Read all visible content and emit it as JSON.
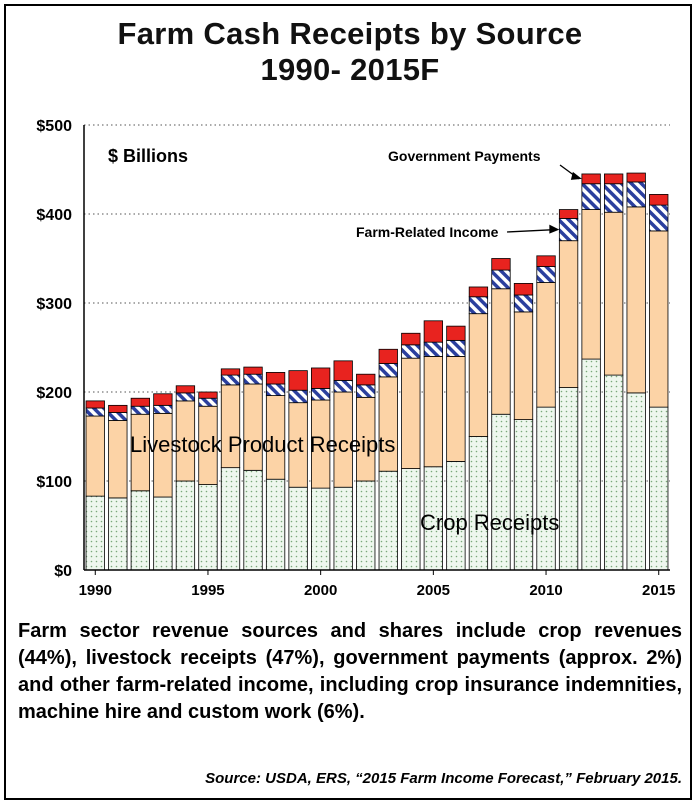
{
  "title_line1": "Farm Cash Receipts by Source",
  "title_line2": "1990- 2015F",
  "caption": "Farm sector revenue sources and shares include crop revenues (44%), livestock receipts (47%), government payments (approx. 2%) and other farm-related income, including crop insurance indemnities, machine hire and custom work (6%).",
  "source": "Source: USDA, ERS, “2015 Farm Income Forecast,” February 2015.",
  "colors": {
    "crop": "#eef7ee",
    "crop_dot": "#7aa87a",
    "livestock": "#fcd3a6",
    "farm_related_stripe": "#2b3f9e",
    "government": "#e8231f"
  },
  "chart_data": {
    "type": "bar",
    "stacked": true,
    "title": "Farm Cash Receipts by Source 1990- 2015F",
    "unit_label": "$ Billions",
    "ylim": [
      0,
      500
    ],
    "yticks": [
      "$0",
      "$100",
      "$200",
      "$300",
      "$400",
      "$500"
    ],
    "ytick_values": [
      0,
      100,
      200,
      300,
      400,
      500
    ],
    "xtick_labels": [
      "1990",
      "1995",
      "2000",
      "2005",
      "2010",
      "2015"
    ],
    "grid": "horizontal dotted",
    "categories": [
      "1990",
      "1991",
      "1992",
      "1993",
      "1994",
      "1995",
      "1996",
      "1997",
      "1998",
      "1999",
      "2000",
      "2001",
      "2002",
      "2003",
      "2004",
      "2005",
      "2006",
      "2007",
      "2008",
      "2009",
      "2010",
      "2011",
      "2012",
      "2013",
      "2014",
      "2015"
    ],
    "series": [
      {
        "name": "Crop Receipts",
        "values": [
          83,
          81,
          89,
          82,
          100,
          96,
          115,
          112,
          102,
          93,
          92,
          93,
          100,
          111,
          114,
          116,
          122,
          150,
          175,
          169,
          183,
          205,
          237,
          219,
          199,
          183
        ]
      },
      {
        "name": "Livestock Product Receipts",
        "values": [
          90,
          87,
          86,
          94,
          90,
          88,
          93,
          97,
          94,
          95,
          99,
          107,
          94,
          106,
          124,
          124,
          118,
          138,
          141,
          121,
          140,
          165,
          168,
          183,
          209,
          198
        ]
      },
      {
        "name": "Farm-Related Income",
        "values": [
          9,
          9,
          9,
          9,
          9,
          9,
          11,
          11,
          13,
          14,
          13,
          13,
          14,
          15,
          15,
          16,
          18,
          19,
          21,
          19,
          18,
          25,
          29,
          32,
          28,
          29
        ]
      },
      {
        "name": "Government Payments",
        "values": [
          8,
          8,
          9,
          13,
          8,
          7,
          7,
          8,
          13,
          22,
          23,
          22,
          12,
          16,
          13,
          24,
          16,
          11,
          13,
          13,
          12,
          10,
          11,
          11,
          10,
          12
        ]
      }
    ],
    "annotations": [
      {
        "text": "Government Payments",
        "points_to": "2012"
      },
      {
        "text": "Farm-Related Income",
        "points_to": "2011"
      }
    ],
    "series_labels": [
      "Livestock Product Receipts",
      "Crop Receipts"
    ]
  }
}
